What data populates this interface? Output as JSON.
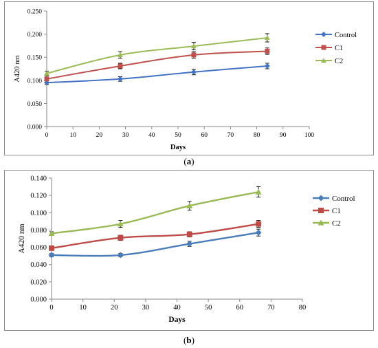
{
  "captions": [
    {
      "open": "(",
      "letter": "a",
      "close": ")"
    },
    {
      "open": "(",
      "letter": "b",
      "close": ")"
    }
  ],
  "chart_data": [
    {
      "type": "line",
      "xlabel": "Days",
      "ylabel": "A420 nm",
      "xlim": [
        0,
        100
      ],
      "ylim": [
        0,
        0.25
      ],
      "xticks": [
        "0",
        "10",
        "20",
        "30",
        "40",
        "50",
        "60",
        "70",
        "80",
        "90",
        "100"
      ],
      "yticks": [
        "0.000",
        "0.050",
        "0.100",
        "0.150",
        "0.200",
        "0.250"
      ],
      "grid": false,
      "legend": "right",
      "x": [
        0,
        28,
        56,
        84
      ],
      "series": [
        {
          "name": "Control",
          "color": "#4472c4",
          "marker": "diamond",
          "values": [
            0.095,
            0.103,
            0.118,
            0.131
          ],
          "errors": [
            0.004,
            0.005,
            0.006,
            0.006
          ]
        },
        {
          "name": "C1",
          "color": "#c0504d",
          "marker": "square",
          "values": [
            0.103,
            0.131,
            0.155,
            0.163
          ],
          "errors": [
            0.004,
            0.006,
            0.007,
            0.007
          ]
        },
        {
          "name": "C2",
          "color": "#9bbb59",
          "marker": "triangle",
          "values": [
            0.115,
            0.155,
            0.174,
            0.192
          ],
          "errors": [
            0.005,
            0.007,
            0.008,
            0.009
          ]
        }
      ]
    },
    {
      "type": "line",
      "xlabel": "Days",
      "ylabel": "A420 nm",
      "xlim": [
        0,
        80
      ],
      "ylim": [
        0,
        0.14
      ],
      "xticks": [
        "0",
        "10",
        "20",
        "30",
        "40",
        "50",
        "60",
        "70",
        "80"
      ],
      "yticks": [
        "0.000",
        "0.020",
        "0.040",
        "0.060",
        "0.080",
        "0.100",
        "0.120",
        "0.140"
      ],
      "grid": false,
      "legend": "right",
      "x": [
        0,
        22,
        44,
        66
      ],
      "series": [
        {
          "name": "Control",
          "color": "#4a7ebb",
          "marker": "diamond",
          "values": [
            0.051,
            0.051,
            0.064,
            0.077
          ],
          "errors": [
            0.002,
            0.002,
            0.003,
            0.004
          ]
        },
        {
          "name": "C1",
          "color": "#be4b48",
          "marker": "square",
          "values": [
            0.059,
            0.071,
            0.075,
            0.087
          ],
          "errors": [
            0.002,
            0.003,
            0.003,
            0.004
          ]
        },
        {
          "name": "C2",
          "color": "#98b954",
          "marker": "triangle",
          "values": [
            0.076,
            0.087,
            0.108,
            0.124
          ],
          "errors": [
            0.002,
            0.004,
            0.005,
            0.006
          ]
        }
      ]
    }
  ]
}
